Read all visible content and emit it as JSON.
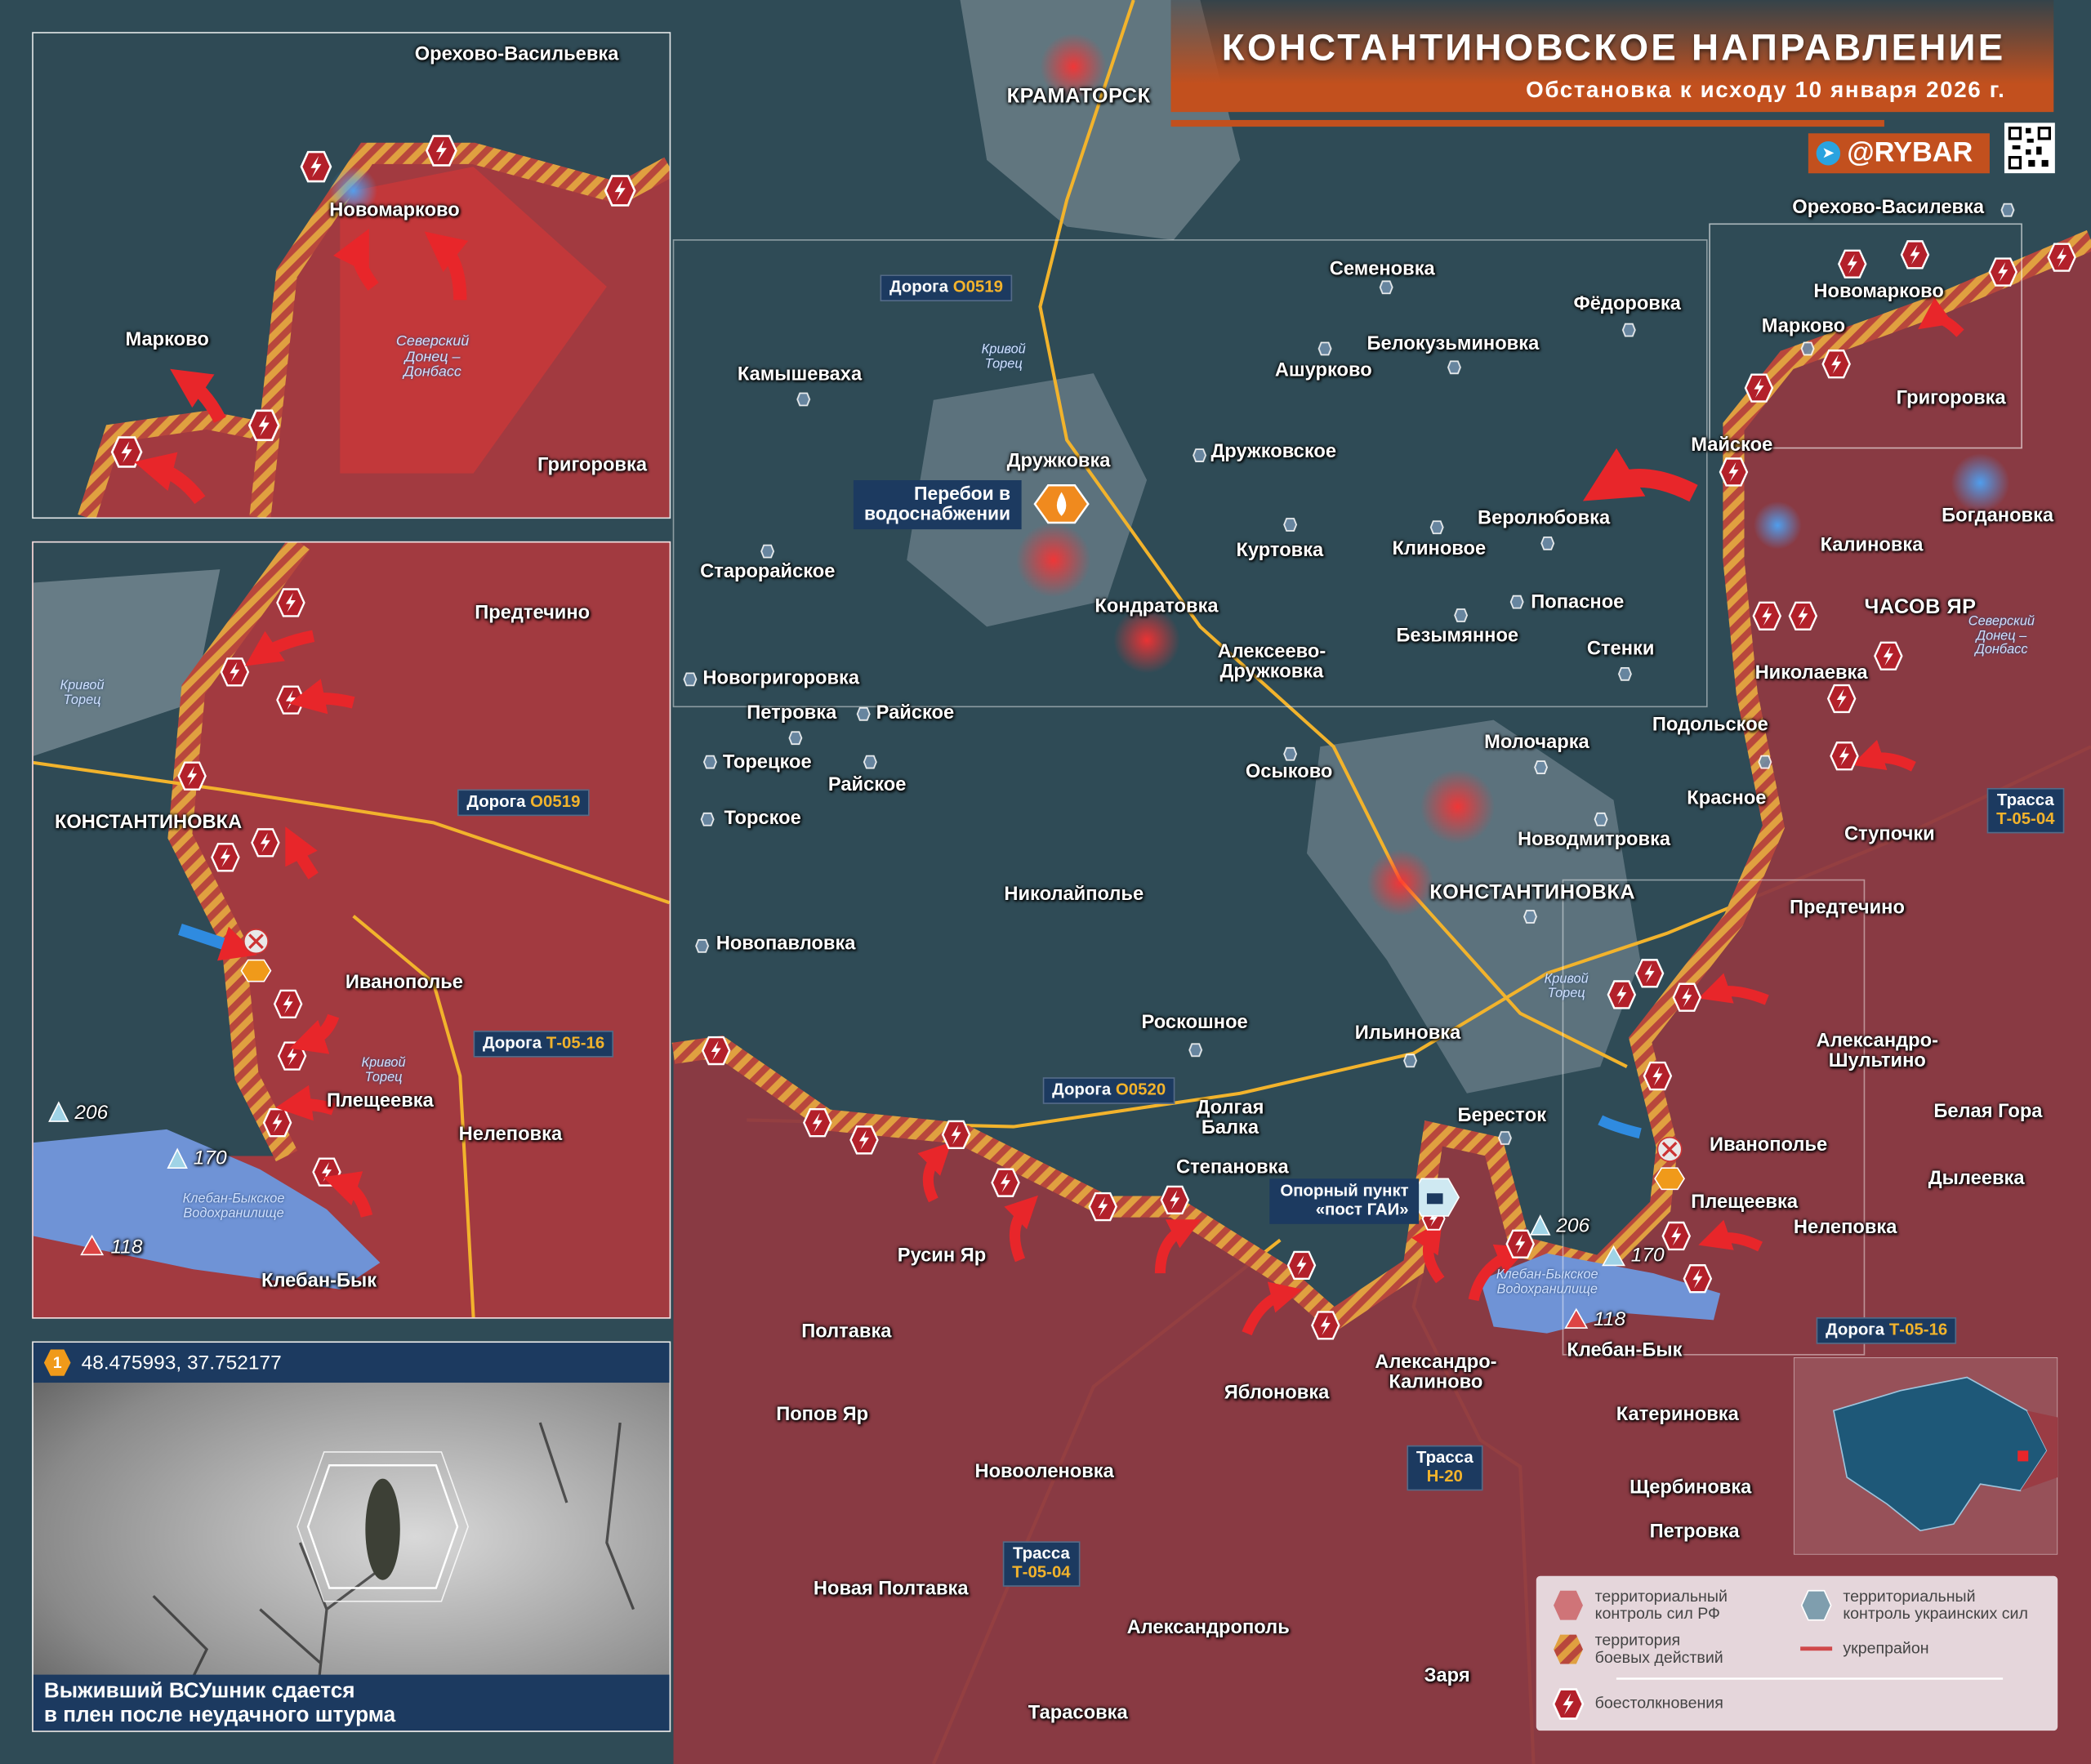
{
  "header": {
    "title": "КОНСТАНТИНОВСКОЕ НАПРАВЛЕНИЕ",
    "subtitle": "Обстановка к исходу 10 января 2026 г.",
    "channel": "@RYBAR",
    "telegram_icon": "telegram-icon",
    "qr_icon": "qr-code"
  },
  "colors": {
    "ru_control": "#8e3942",
    "ua_control": "#2f4b56",
    "combat_zone": "#e0a040",
    "accent_orange": "#c2501e",
    "clash": "#b3202a",
    "road": "#f2b32c",
    "water": "#6f93d6"
  },
  "main_map": {
    "cities": [
      "КРАМАТОРСК",
      "КОНСТАНТИНОВКА",
      "ЧАСОВ ЯР"
    ],
    "settlements": [
      "Семеновка",
      "Фёдоровка",
      "Камышеваха",
      "Ашурково",
      "Белокузьминовка",
      "Дружковка",
      "Дружковское",
      "Старорайское",
      "Куртовка",
      "Клиновое",
      "Веролюбовка",
      "Кондратовка",
      "Попасное",
      "Безымянное",
      "Алексеево-\nДружковка",
      "Стенки",
      "Новогригоровка",
      "Петровка",
      "Райское",
      "Торецкое",
      "Райское",
      "Торское",
      "Молочарка",
      "Осыково",
      "Подольское",
      "Красное",
      "Новодмитровка",
      "Николайполье",
      "Новопавловка",
      "Роскошное",
      "Ильиновка",
      "Долгая\nБалка",
      "Берестoк",
      "Степановка",
      "Русин Яр",
      "Полтавка",
      "Клебан-Бык",
      "Александро-\nКалиново",
      "Яблоновка",
      "Попов Яр",
      "Катериновка",
      "Новооленовка",
      "Щербиновка",
      "Петровка",
      "Новая Полтавка",
      "Александрополь",
      "Заря",
      "Тарасовка",
      "Орехово-Василевка",
      "Новомарково",
      "Марково",
      "Григоровка",
      "Майское",
      "Богдановка",
      "Калиновка",
      "Николаевка",
      "Ступочки",
      "Предтечино",
      "Александро-\nШультино",
      "Белая Гора",
      "Иванополье",
      "Дылеевка",
      "Плещеевка",
      "Нелеповка"
    ],
    "water": [
      "Кривой\nТорец",
      "Кривой\nТорец",
      "Клебан-Быкское\nВодохранилище",
      "Северский\nДонец –\nДонбасс"
    ],
    "heights": [
      "206",
      "170",
      "118"
    ],
    "roads": [
      {
        "kind": "Дорога",
        "code": "О0519"
      },
      {
        "kind": "Дорога",
        "code": "О0520"
      },
      {
        "kind": "Трасса",
        "code": "Т-05-04"
      },
      {
        "kind": "Трасса",
        "code": "Н-20"
      },
      {
        "kind": "Трасса",
        "code": "Т-05-04"
      },
      {
        "kind": "Дорога",
        "code": "Т-05-16"
      }
    ],
    "water_outage": "Перебои в\nводоснабжении",
    "stronghold": "Опорный пункт\n«пост ГАИ»"
  },
  "inset_north": {
    "settlements": [
      "Орехово-Васильевка",
      "Новомарково",
      "Марково",
      "Григоровка"
    ],
    "water": "Северский\nДонец –\nДонбасс"
  },
  "inset_south": {
    "settlements": [
      "Предтечино",
      "КОНСТАНТИНОВКА",
      "Иванополье",
      "Плещеевка",
      "Нелеповка",
      "Клебан-Бык"
    ],
    "water": [
      "Кривой\nТорец",
      "Кривой\nТорец",
      "Клебан-Быкское\nВодохранилище"
    ],
    "heights": [
      "206",
      "170",
      "118"
    ],
    "roads": [
      {
        "kind": "Дорога",
        "code": "О0519"
      },
      {
        "kind": "Дорога",
        "code": "Т-05-16"
      }
    ]
  },
  "photo": {
    "marker": "1",
    "coords": "48.475993, 37.752177",
    "caption": "Выживший ВСУшник сдается\nв плен после неудачного штурма"
  },
  "legend": {
    "ru_control": "территориальный\nконтроль сил РФ",
    "ua_control": "территориальный\nконтроль украинских сил",
    "combat_zone": "территория\nбоевых действий",
    "fortified": "укрепрайон",
    "clashes": "боестолкновения"
  }
}
